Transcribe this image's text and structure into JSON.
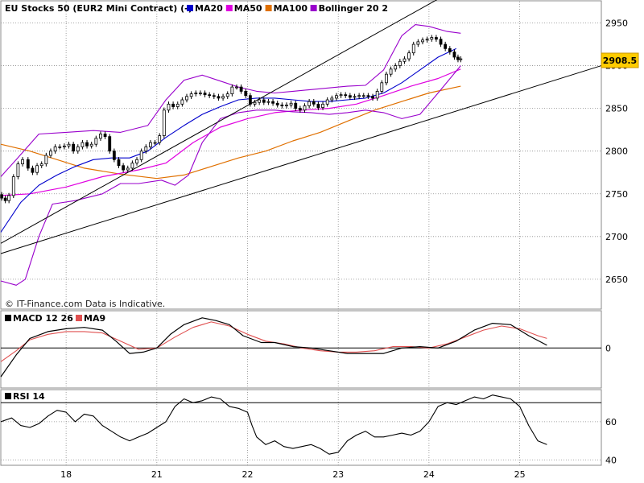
{
  "chart_data": [
    {
      "panel": "price",
      "type": "candlestick",
      "title": "EU Stocks 50 (EUR2 Mini Contract) (-)",
      "watermark": "© IT-Finance.com Data is Indicative.",
      "last_price": "2908.5",
      "ylim": [
        2615,
        2975
      ],
      "y_ticks": [
        "2950",
        "2900",
        "2850",
        "2800",
        "2750",
        "2700",
        "2650"
      ],
      "legend": [
        {
          "name": "MA20",
          "color": "#0000cc"
        },
        {
          "name": "MA50",
          "color": "#e000e0"
        },
        {
          "name": "MA100",
          "color": "#e07000"
        },
        {
          "name": "Bollinger 20 2",
          "color": "#9900cc"
        }
      ],
      "x_labels": [
        "18",
        "21",
        "22",
        "23",
        "24",
        "25"
      ],
      "x_label_positions_days": [
        1,
        2,
        3,
        4,
        5,
        6
      ],
      "x_range_days": [
        0.28,
        6.9
      ],
      "close": [
        [
          0.29,
          2745
        ],
        [
          0.33,
          2742
        ],
        [
          0.37,
          2748
        ],
        [
          0.42,
          2770
        ],
        [
          0.47,
          2785
        ],
        [
          0.52,
          2790
        ],
        [
          0.58,
          2780
        ],
        [
          0.63,
          2775
        ],
        [
          0.68,
          2783
        ],
        [
          0.73,
          2785
        ],
        [
          0.78,
          2795
        ],
        [
          0.83,
          2800
        ],
        [
          0.88,
          2805
        ],
        [
          0.93,
          2805
        ],
        [
          0.98,
          2806
        ],
        [
          1.03,
          2808
        ],
        [
          1.08,
          2800
        ],
        [
          1.13,
          2805
        ],
        [
          1.18,
          2810
        ],
        [
          1.23,
          2806
        ],
        [
          1.28,
          2808
        ],
        [
          1.33,
          2815
        ],
        [
          1.38,
          2820
        ],
        [
          1.43,
          2817
        ],
        [
          1.48,
          2800
        ],
        [
          1.53,
          2790
        ],
        [
          1.58,
          2783
        ],
        [
          1.63,
          2778
        ],
        [
          1.68,
          2780
        ],
        [
          1.73,
          2786
        ],
        [
          1.78,
          2790
        ],
        [
          1.83,
          2800
        ],
        [
          1.88,
          2805
        ],
        [
          1.93,
          2810
        ],
        [
          1.98,
          2810
        ],
        [
          2.03,
          2818
        ],
        [
          2.08,
          2848
        ],
        [
          2.13,
          2855
        ],
        [
          2.18,
          2852
        ],
        [
          2.23,
          2855
        ],
        [
          2.28,
          2860
        ],
        [
          2.33,
          2864
        ],
        [
          2.38,
          2867
        ],
        [
          2.43,
          2868
        ],
        [
          2.48,
          2868
        ],
        [
          2.53,
          2866
        ],
        [
          2.58,
          2865
        ],
        [
          2.63,
          2864
        ],
        [
          2.68,
          2862
        ],
        [
          2.73,
          2864
        ],
        [
          2.78,
          2867
        ],
        [
          2.83,
          2875
        ],
        [
          2.88,
          2875
        ],
        [
          2.93,
          2870
        ],
        [
          2.98,
          2865
        ],
        [
          3.03,
          2855
        ],
        [
          3.08,
          2857
        ],
        [
          3.13,
          2860
        ],
        [
          3.18,
          2857
        ],
        [
          3.23,
          2858
        ],
        [
          3.28,
          2856
        ],
        [
          3.33,
          2854
        ],
        [
          3.38,
          2853
        ],
        [
          3.43,
          2854
        ],
        [
          3.48,
          2856
        ],
        [
          3.53,
          2850
        ],
        [
          3.58,
          2848
        ],
        [
          3.63,
          2853
        ],
        [
          3.68,
          2858
        ],
        [
          3.73,
          2855
        ],
        [
          3.78,
          2851
        ],
        [
          3.83,
          2855
        ],
        [
          3.88,
          2860
        ],
        [
          3.93,
          2862
        ],
        [
          3.98,
          2865
        ],
        [
          4.03,
          2866
        ],
        [
          4.08,
          2865
        ],
        [
          4.13,
          2863
        ],
        [
          4.18,
          2864
        ],
        [
          4.23,
          2865
        ],
        [
          4.28,
          2865
        ],
        [
          4.33,
          2864
        ],
        [
          4.38,
          2862
        ],
        [
          4.43,
          2870
        ],
        [
          4.48,
          2880
        ],
        [
          4.53,
          2890
        ],
        [
          4.58,
          2896
        ],
        [
          4.63,
          2900
        ],
        [
          4.68,
          2905
        ],
        [
          4.73,
          2908
        ],
        [
          4.78,
          2915
        ],
        [
          4.83,
          2925
        ],
        [
          4.88,
          2928
        ],
        [
          4.93,
          2930
        ],
        [
          4.98,
          2931
        ],
        [
          5.03,
          2933
        ],
        [
          5.08,
          2931
        ],
        [
          5.13,
          2925
        ],
        [
          5.18,
          2920
        ],
        [
          5.23,
          2916
        ],
        [
          5.28,
          2910
        ],
        [
          5.32,
          2907
        ],
        [
          5.35,
          2908
        ]
      ],
      "ma20": [
        [
          0.28,
          2705
        ],
        [
          0.5,
          2740
        ],
        [
          0.7,
          2760
        ],
        [
          0.9,
          2772
        ],
        [
          1.1,
          2782
        ],
        [
          1.3,
          2790
        ],
        [
          1.5,
          2792
        ],
        [
          1.7,
          2792
        ],
        [
          1.9,
          2800
        ],
        [
          2.1,
          2816
        ],
        [
          2.3,
          2830
        ],
        [
          2.5,
          2843
        ],
        [
          2.7,
          2852
        ],
        [
          2.9,
          2860
        ],
        [
          3.1,
          2862
        ],
        [
          3.3,
          2862
        ],
        [
          3.5,
          2860
        ],
        [
          3.7,
          2858
        ],
        [
          3.9,
          2858
        ],
        [
          4.1,
          2860
        ],
        [
          4.3,
          2862
        ],
        [
          4.5,
          2868
        ],
        [
          4.7,
          2880
        ],
        [
          4.9,
          2895
        ],
        [
          5.1,
          2910
        ],
        [
          5.3,
          2920
        ]
      ],
      "ma50": [
        [
          0.28,
          2748
        ],
        [
          0.6,
          2750
        ],
        [
          1.0,
          2758
        ],
        [
          1.4,
          2770
        ],
        [
          1.8,
          2778
        ],
        [
          2.1,
          2786
        ],
        [
          2.4,
          2810
        ],
        [
          2.7,
          2828
        ],
        [
          3.0,
          2838
        ],
        [
          3.3,
          2845
        ],
        [
          3.6,
          2848
        ],
        [
          3.9,
          2850
        ],
        [
          4.2,
          2855
        ],
        [
          4.5,
          2865
        ],
        [
          4.8,
          2876
        ],
        [
          5.1,
          2885
        ],
        [
          5.35,
          2896
        ]
      ],
      "ma100": [
        [
          0.28,
          2808
        ],
        [
          0.6,
          2800
        ],
        [
          0.9,
          2790
        ],
        [
          1.2,
          2780
        ],
        [
          1.6,
          2773
        ],
        [
          2.0,
          2768
        ],
        [
          2.3,
          2772
        ],
        [
          2.6,
          2782
        ],
        [
          2.9,
          2792
        ],
        [
          3.2,
          2800
        ],
        [
          3.5,
          2812
        ],
        [
          3.8,
          2822
        ],
        [
          4.1,
          2835
        ],
        [
          4.4,
          2848
        ],
        [
          4.7,
          2858
        ],
        [
          5.0,
          2868
        ],
        [
          5.35,
          2876
        ]
      ],
      "bollinger_upper": [
        [
          0.28,
          2770
        ],
        [
          0.45,
          2790
        ],
        [
          0.7,
          2820
        ],
        [
          1.0,
          2822
        ],
        [
          1.3,
          2824
        ],
        [
          1.6,
          2822
        ],
        [
          1.9,
          2830
        ],
        [
          2.1,
          2860
        ],
        [
          2.3,
          2883
        ],
        [
          2.5,
          2889
        ],
        [
          2.7,
          2882
        ],
        [
          2.9,
          2875
        ],
        [
          3.1,
          2870
        ],
        [
          3.3,
          2868
        ],
        [
          3.5,
          2870
        ],
        [
          3.7,
          2872
        ],
        [
          3.9,
          2874
        ],
        [
          4.1,
          2876
        ],
        [
          4.3,
          2877
        ],
        [
          4.5,
          2895
        ],
        [
          4.7,
          2935
        ],
        [
          4.85,
          2948
        ],
        [
          5.0,
          2946
        ],
        [
          5.2,
          2940
        ],
        [
          5.35,
          2938
        ]
      ],
      "bollinger_lower": [
        [
          0.28,
          2648
        ],
        [
          0.45,
          2643
        ],
        [
          0.55,
          2650
        ],
        [
          0.7,
          2700
        ],
        [
          0.85,
          2738
        ],
        [
          1.1,
          2742
        ],
        [
          1.4,
          2750
        ],
        [
          1.6,
          2762
        ],
        [
          1.8,
          2762
        ],
        [
          2.05,
          2766
        ],
        [
          2.2,
          2760
        ],
        [
          2.35,
          2772
        ],
        [
          2.5,
          2810
        ],
        [
          2.7,
          2838
        ],
        [
          2.9,
          2845
        ],
        [
          3.1,
          2848
        ],
        [
          3.3,
          2848
        ],
        [
          3.5,
          2846
        ],
        [
          3.7,
          2845
        ],
        [
          3.9,
          2843
        ],
        [
          4.1,
          2845
        ],
        [
          4.3,
          2848
        ],
        [
          4.5,
          2845
        ],
        [
          4.7,
          2838
        ],
        [
          4.9,
          2843
        ],
        [
          5.1,
          2868
        ],
        [
          5.35,
          2900
        ]
      ],
      "trendlines": [
        {
          "from": [
            0.28,
            2680
          ],
          "to": [
            6.9,
            2900
          ]
        },
        {
          "from": [
            0.28,
            2692
          ],
          "to": [
            5.1,
            2978
          ]
        }
      ]
    },
    {
      "panel": "macd",
      "type": "line",
      "legend": [
        {
          "name": "MACD 12 26",
          "color": "#000000"
        },
        {
          "name": "MA9",
          "color": "#e05050"
        }
      ],
      "y_tick": "0",
      "ylim": [
        -28,
        26
      ],
      "macd": [
        [
          0.28,
          -21
        ],
        [
          0.45,
          -5
        ],
        [
          0.6,
          7
        ],
        [
          0.8,
          12
        ],
        [
          1.0,
          14
        ],
        [
          1.2,
          15
        ],
        [
          1.4,
          13
        ],
        [
          1.55,
          5
        ],
        [
          1.7,
          -4
        ],
        [
          1.85,
          -3
        ],
        [
          2.0,
          0
        ],
        [
          2.15,
          10
        ],
        [
          2.3,
          17
        ],
        [
          2.5,
          22
        ],
        [
          2.65,
          20
        ],
        [
          2.8,
          17
        ],
        [
          2.95,
          9
        ],
        [
          3.15,
          4
        ],
        [
          3.3,
          4
        ],
        [
          3.5,
          1
        ],
        [
          3.7,
          0
        ],
        [
          3.9,
          -2
        ],
        [
          4.1,
          -4
        ],
        [
          4.3,
          -4
        ],
        [
          4.5,
          -4
        ],
        [
          4.7,
          0
        ],
        [
          4.9,
          1
        ],
        [
          5.1,
          0
        ],
        [
          5.3,
          5
        ],
        [
          5.5,
          13
        ],
        [
          5.7,
          18
        ],
        [
          5.9,
          17
        ],
        [
          6.1,
          9
        ],
        [
          6.3,
          2
        ]
      ],
      "signal": [
        [
          0.28,
          -10
        ],
        [
          0.45,
          -2
        ],
        [
          0.6,
          6
        ],
        [
          0.8,
          10
        ],
        [
          1.0,
          12
        ],
        [
          1.2,
          12
        ],
        [
          1.4,
          11
        ],
        [
          1.6,
          5
        ],
        [
          1.8,
          -1
        ],
        [
          2.0,
          0
        ],
        [
          2.2,
          8
        ],
        [
          2.4,
          15
        ],
        [
          2.6,
          19
        ],
        [
          2.8,
          16
        ],
        [
          3.0,
          10
        ],
        [
          3.2,
          5
        ],
        [
          3.4,
          3
        ],
        [
          3.6,
          0
        ],
        [
          3.8,
          -2
        ],
        [
          4.0,
          -3
        ],
        [
          4.2,
          -3
        ],
        [
          4.4,
          -2
        ],
        [
          4.6,
          1
        ],
        [
          4.8,
          1
        ],
        [
          5.0,
          0
        ],
        [
          5.2,
          3
        ],
        [
          5.4,
          8
        ],
        [
          5.6,
          13
        ],
        [
          5.8,
          16
        ],
        [
          6.0,
          14
        ],
        [
          6.2,
          9
        ],
        [
          6.3,
          7
        ]
      ]
    },
    {
      "panel": "rsi",
      "type": "line",
      "legend": [
        {
          "name": "RSI 14",
          "color": "#000000"
        }
      ],
      "y_ticks": [
        "60",
        "40"
      ],
      "ylim": [
        38,
        76
      ],
      "reference_line": 70,
      "rsi": [
        [
          0.28,
          60
        ],
        [
          0.4,
          62
        ],
        [
          0.5,
          58
        ],
        [
          0.6,
          57
        ],
        [
          0.7,
          59
        ],
        [
          0.8,
          63
        ],
        [
          0.9,
          66
        ],
        [
          1.0,
          65
        ],
        [
          1.1,
          60
        ],
        [
          1.2,
          64
        ],
        [
          1.3,
          63
        ],
        [
          1.4,
          58
        ],
        [
          1.5,
          55
        ],
        [
          1.6,
          52
        ],
        [
          1.7,
          50
        ],
        [
          1.8,
          52
        ],
        [
          1.9,
          54
        ],
        [
          2.0,
          57
        ],
        [
          2.1,
          60
        ],
        [
          2.2,
          68
        ],
        [
          2.3,
          72
        ],
        [
          2.4,
          70
        ],
        [
          2.5,
          71
        ],
        [
          2.6,
          73
        ],
        [
          2.7,
          72
        ],
        [
          2.8,
          68
        ],
        [
          2.9,
          67
        ],
        [
          3.0,
          65
        ],
        [
          3.05,
          58
        ],
        [
          3.1,
          52
        ],
        [
          3.2,
          48
        ],
        [
          3.3,
          50
        ],
        [
          3.4,
          47
        ],
        [
          3.5,
          46
        ],
        [
          3.6,
          47
        ],
        [
          3.7,
          48
        ],
        [
          3.8,
          46
        ],
        [
          3.9,
          43
        ],
        [
          4.0,
          44
        ],
        [
          4.1,
          50
        ],
        [
          4.2,
          53
        ],
        [
          4.3,
          55
        ],
        [
          4.4,
          52
        ],
        [
          4.5,
          52
        ],
        [
          4.6,
          53
        ],
        [
          4.7,
          54
        ],
        [
          4.8,
          53
        ],
        [
          4.9,
          55
        ],
        [
          5.0,
          60
        ],
        [
          5.1,
          68
        ],
        [
          5.2,
          70
        ],
        [
          5.3,
          69
        ],
        [
          5.4,
          71
        ],
        [
          5.5,
          73
        ],
        [
          5.6,
          72
        ],
        [
          5.7,
          74
        ],
        [
          5.8,
          73
        ],
        [
          5.9,
          72
        ],
        [
          6.0,
          68
        ],
        [
          6.1,
          58
        ],
        [
          6.2,
          50
        ],
        [
          6.3,
          48
        ]
      ]
    }
  ]
}
